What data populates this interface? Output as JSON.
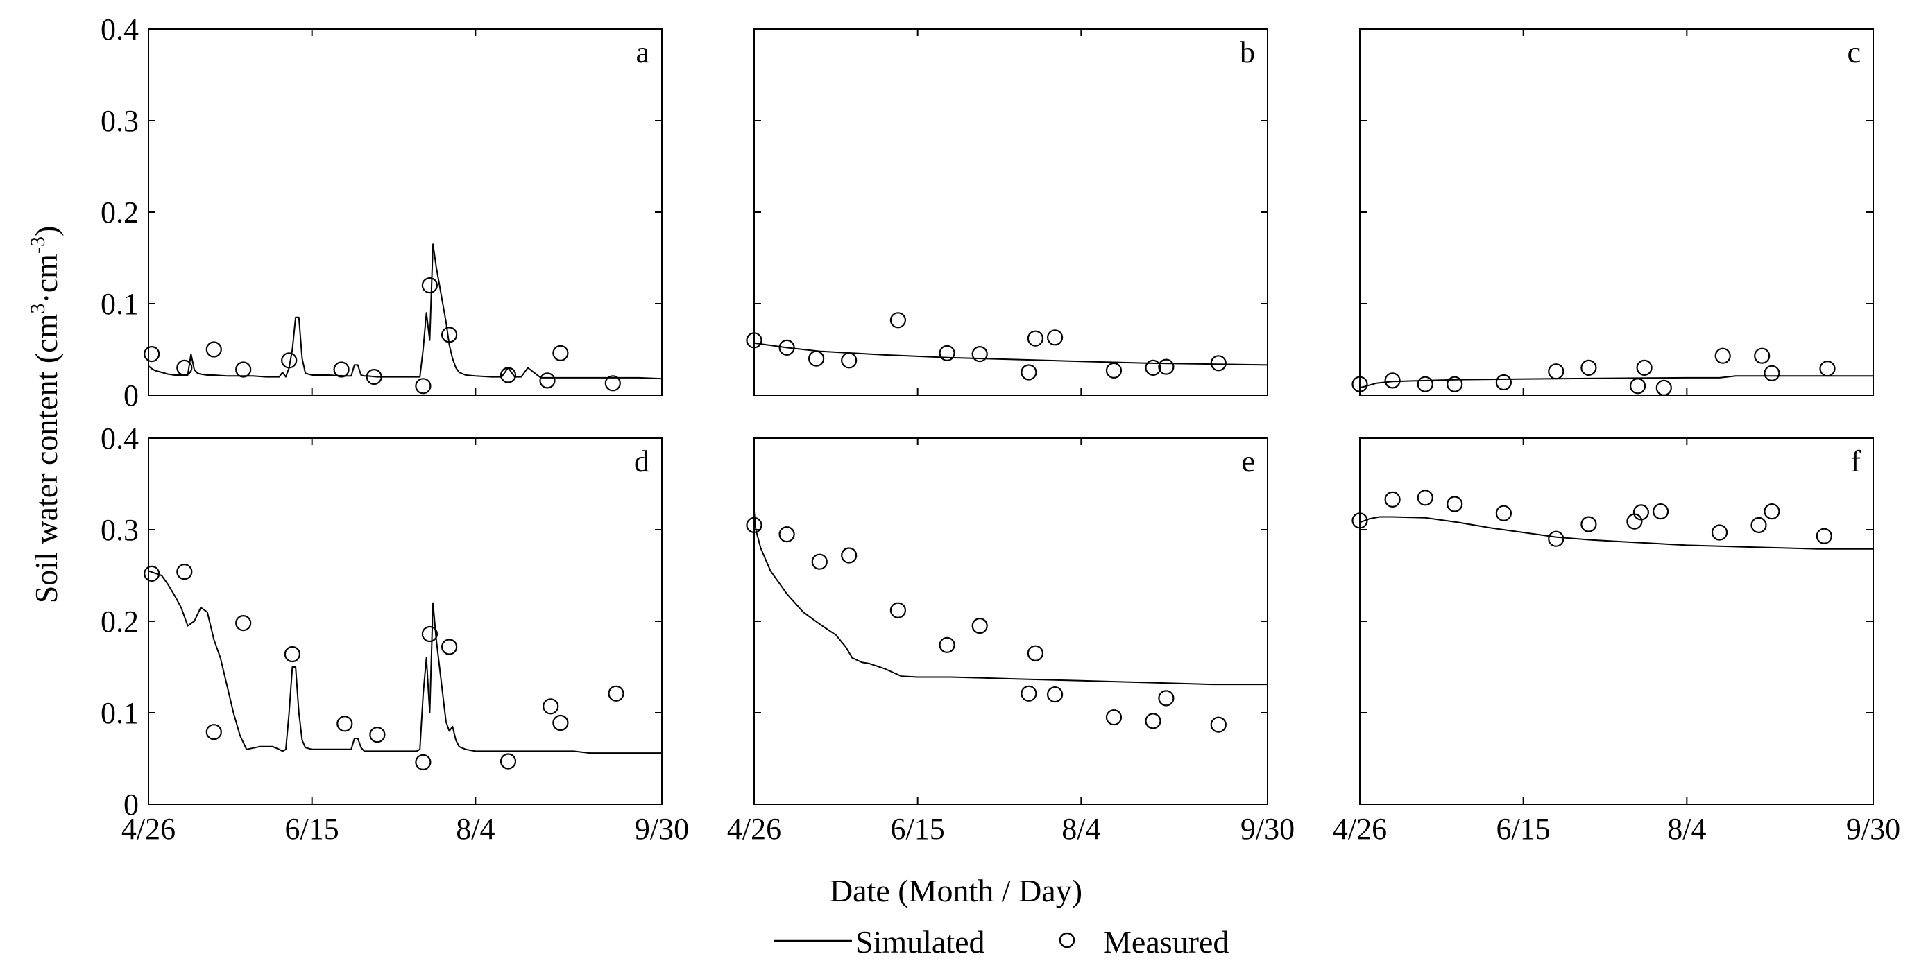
{
  "figure": {
    "xlabel": "Date (Month / Day)",
    "ylabel_main": "Soil water content (cm",
    "ylabel_sup1": "3",
    "ylabel_mid": "·cm",
    "ylabel_sup2": "-3",
    "ylabel_end": ")",
    "legend": {
      "simulated_label": "Simulated",
      "measured_label": "Measured"
    },
    "y_ticks": [
      "0",
      "0.1",
      "0.2",
      "0.3",
      "0.4"
    ],
    "x_ticks": [
      "4/26",
      "6/15",
      "8/4",
      "9/30"
    ]
  },
  "chart_data": [
    {
      "type": "line+scatter",
      "panel": "a",
      "xlim": [
        0,
        157
      ],
      "ylim": [
        0,
        0.4
      ],
      "series": [
        {
          "name": "Simulated",
          "x": [
            0,
            1,
            2,
            4,
            6,
            8,
            10,
            12,
            13,
            14,
            15,
            16,
            18,
            20,
            24,
            28,
            32,
            36,
            38,
            40,
            41,
            42,
            43,
            44,
            45,
            46,
            47,
            48,
            50,
            55,
            60,
            62,
            63,
            64,
            65,
            66,
            67,
            70,
            75,
            80,
            82,
            83,
            84,
            85,
            86,
            87,
            88,
            89,
            90,
            91,
            92,
            93,
            94,
            95,
            97,
            100,
            105,
            108,
            110,
            112,
            114,
            116,
            120,
            130,
            140,
            150,
            157
          ],
          "y": [
            0.032,
            0.029,
            0.027,
            0.025,
            0.023,
            0.022,
            0.022,
            0.022,
            0.045,
            0.028,
            0.024,
            0.023,
            0.022,
            0.022,
            0.021,
            0.021,
            0.021,
            0.02,
            0.02,
            0.02,
            0.025,
            0.02,
            0.03,
            0.05,
            0.085,
            0.085,
            0.04,
            0.024,
            0.022,
            0.022,
            0.021,
            0.021,
            0.033,
            0.033,
            0.022,
            0.021,
            0.021,
            0.02,
            0.02,
            0.02,
            0.02,
            0.02,
            0.05,
            0.09,
            0.06,
            0.165,
            0.14,
            0.12,
            0.1,
            0.08,
            0.055,
            0.04,
            0.03,
            0.025,
            0.022,
            0.021,
            0.02,
            0.02,
            0.03,
            0.02,
            0.02,
            0.03,
            0.019,
            0.019,
            0.019,
            0.019,
            0.018
          ]
        },
        {
          "name": "Measured",
          "x": [
            1,
            11,
            20,
            29,
            43,
            59,
            69,
            84,
            86,
            92,
            110,
            122,
            126,
            142
          ],
          "y": [
            0.045,
            0.03,
            0.05,
            0.028,
            0.038,
            0.028,
            0.02,
            0.01,
            0.12,
            0.066,
            0.022,
            0.016,
            0.046,
            0.013
          ]
        }
      ]
    },
    {
      "type": "line+scatter",
      "panel": "b",
      "xlim": [
        0,
        157
      ],
      "ylim": [
        0,
        0.4
      ],
      "series": [
        {
          "name": "Simulated",
          "x": [
            0,
            10,
            20,
            40,
            60,
            80,
            100,
            120,
            140,
            157
          ],
          "y": [
            0.057,
            0.052,
            0.048,
            0.044,
            0.041,
            0.039,
            0.037,
            0.035,
            0.034,
            0.033
          ]
        },
        {
          "name": "Measured",
          "x": [
            0,
            10,
            19,
            29,
            44,
            59,
            69,
            84,
            86,
            92,
            110,
            122,
            126,
            142
          ],
          "y": [
            0.06,
            0.052,
            0.04,
            0.038,
            0.082,
            0.046,
            0.045,
            0.025,
            0.062,
            0.063,
            0.027,
            0.03,
            0.031,
            0.035
          ]
        }
      ]
    },
    {
      "type": "line+scatter",
      "panel": "c",
      "xlim": [
        0,
        157
      ],
      "ylim": [
        0,
        0.4
      ],
      "series": [
        {
          "name": "Simulated",
          "x": [
            0,
            2,
            5,
            10,
            30,
            60,
            100,
            110,
            115,
            120,
            157
          ],
          "y": [
            0.008,
            0.01,
            0.013,
            0.015,
            0.017,
            0.018,
            0.019,
            0.019,
            0.021,
            0.021,
            0.021
          ]
        },
        {
          "name": "Measured",
          "x": [
            0,
            10,
            20,
            29,
            44,
            60,
            70,
            85,
            87,
            93,
            111,
            123,
            126,
            143
          ],
          "y": [
            0.012,
            0.016,
            0.012,
            0.012,
            0.014,
            0.026,
            0.03,
            0.01,
            0.03,
            0.008,
            0.043,
            0.043,
            0.024,
            0.029
          ]
        }
      ]
    },
    {
      "type": "line+scatter",
      "panel": "d",
      "xlim": [
        0,
        157
      ],
      "ylim": [
        0,
        0.4
      ],
      "series": [
        {
          "name": "Simulated",
          "x": [
            0,
            4,
            6,
            8,
            10,
            12,
            14,
            16,
            18,
            20,
            22,
            24,
            26,
            28,
            30,
            34,
            38,
            40,
            41,
            42,
            43,
            44,
            45,
            46,
            47,
            48,
            50,
            55,
            60,
            62,
            63,
            64,
            65,
            66,
            67,
            70,
            75,
            80,
            82,
            83,
            84,
            85,
            86,
            87,
            88,
            89,
            90,
            91,
            92,
            93,
            94,
            95,
            97,
            100,
            110,
            120,
            130,
            135,
            140,
            157
          ],
          "y": [
            0.255,
            0.25,
            0.24,
            0.228,
            0.215,
            0.195,
            0.2,
            0.215,
            0.21,
            0.18,
            0.16,
            0.13,
            0.1,
            0.075,
            0.06,
            0.063,
            0.063,
            0.06,
            0.058,
            0.06,
            0.1,
            0.15,
            0.15,
            0.1,
            0.07,
            0.062,
            0.06,
            0.06,
            0.06,
            0.06,
            0.072,
            0.072,
            0.062,
            0.058,
            0.058,
            0.058,
            0.058,
            0.058,
            0.058,
            0.06,
            0.12,
            0.16,
            0.1,
            0.22,
            0.18,
            0.15,
            0.12,
            0.09,
            0.08,
            0.085,
            0.07,
            0.063,
            0.06,
            0.058,
            0.058,
            0.058,
            0.058,
            0.056,
            0.056,
            0.056
          ]
        },
        {
          "name": "Measured",
          "x": [
            1,
            11,
            20,
            29,
            44,
            60,
            70,
            84,
            86,
            92,
            110,
            123,
            126,
            143
          ],
          "y": [
            0.252,
            0.254,
            0.079,
            0.198,
            0.164,
            0.088,
            0.076,
            0.046,
            0.186,
            0.172,
            0.047,
            0.107,
            0.089,
            0.121
          ]
        }
      ]
    },
    {
      "type": "line+scatter",
      "panel": "e",
      "xlim": [
        0,
        157
      ],
      "ylim": [
        0,
        0.4
      ],
      "series": [
        {
          "name": "Simulated",
          "x": [
            0,
            0.5,
            2,
            5,
            10,
            15,
            20,
            25,
            28,
            30,
            33,
            35,
            40,
            45,
            50,
            55,
            60,
            70,
            80,
            90,
            100,
            110,
            120,
            130,
            140,
            157
          ],
          "y": [
            0.32,
            0.3,
            0.28,
            0.255,
            0.23,
            0.21,
            0.197,
            0.185,
            0.172,
            0.16,
            0.155,
            0.154,
            0.148,
            0.14,
            0.139,
            0.139,
            0.139,
            0.138,
            0.137,
            0.136,
            0.135,
            0.134,
            0.133,
            0.132,
            0.131,
            0.131
          ]
        },
        {
          "name": "Measured",
          "x": [
            0,
            10,
            20,
            29,
            44,
            59,
            69,
            84,
            86,
            92,
            110,
            122,
            126,
            142
          ],
          "y": [
            0.305,
            0.295,
            0.265,
            0.272,
            0.212,
            0.174,
            0.195,
            0.121,
            0.165,
            0.12,
            0.095,
            0.091,
            0.116,
            0.087
          ]
        }
      ]
    },
    {
      "type": "line+scatter",
      "panel": "f",
      "xlim": [
        0,
        157
      ],
      "ylim": [
        0,
        0.4
      ],
      "series": [
        {
          "name": "Simulated",
          "x": [
            0,
            3,
            6,
            10,
            20,
            30,
            40,
            50,
            60,
            70,
            80,
            90,
            100,
            110,
            120,
            130,
            140,
            157
          ],
          "y": [
            0.308,
            0.312,
            0.314,
            0.314,
            0.313,
            0.308,
            0.302,
            0.297,
            0.292,
            0.289,
            0.287,
            0.285,
            0.283,
            0.282,
            0.281,
            0.28,
            0.279,
            0.279
          ]
        },
        {
          "name": "Measured",
          "x": [
            0,
            10,
            20,
            29,
            44,
            60,
            70,
            84,
            86,
            92,
            110,
            122,
            126,
            142
          ],
          "y": [
            0.31,
            0.333,
            0.335,
            0.328,
            0.318,
            0.29,
            0.306,
            0.309,
            0.319,
            0.32,
            0.297,
            0.305,
            0.32,
            0.293
          ]
        }
      ]
    }
  ]
}
